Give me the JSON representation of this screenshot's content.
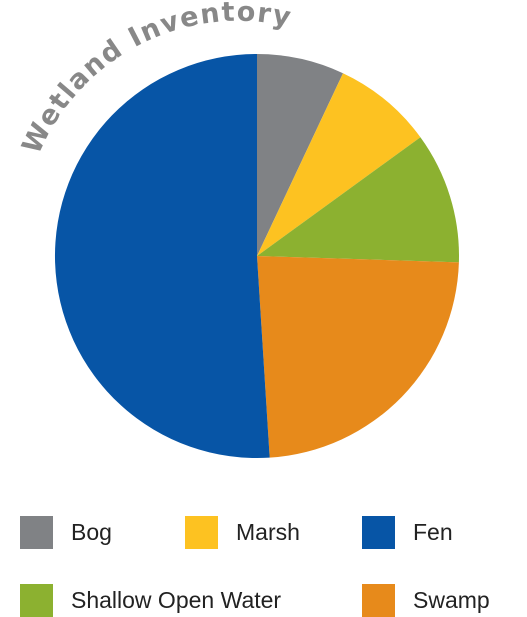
{
  "chart_data": {
    "type": "pie",
    "title": "Wetland Inventory",
    "title_color": "#888888",
    "slices": [
      {
        "label": "Bog",
        "value": 7,
        "color": "#808285"
      },
      {
        "label": "Marsh",
        "value": 8,
        "color": "#FDC221"
      },
      {
        "label": "Shallow Open Water",
        "value": 10.5,
        "color": "#8CB130"
      },
      {
        "label": "Swamp",
        "value": 23.5,
        "color": "#E78A1B"
      },
      {
        "label": "Fen",
        "value": 51,
        "color": "#0755A6"
      }
    ],
    "start_angle": "12 o'clock",
    "direction": "clockwise",
    "legend": {
      "placement": "bottom",
      "order": [
        "Bog",
        "Marsh",
        "Fen",
        "Shallow Open Water",
        "Swamp"
      ]
    }
  }
}
